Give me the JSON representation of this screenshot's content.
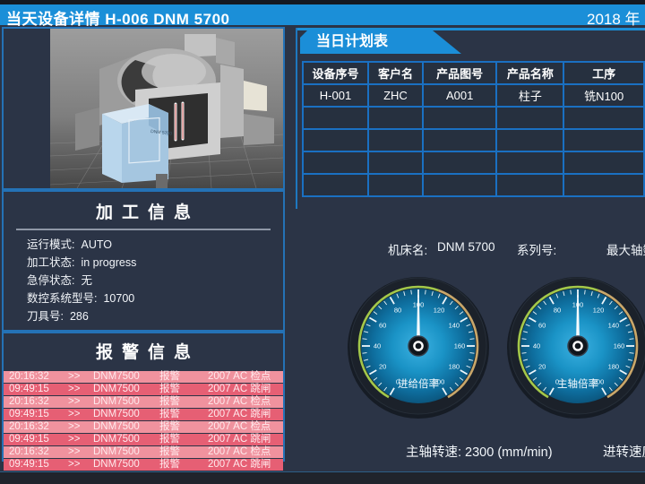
{
  "topbar": {
    "title": "当天设备详情  H-006   DNM 5700",
    "date": "2018 年"
  },
  "plan": {
    "tab_label": "当日计划表",
    "columns": [
      "设备序号",
      "客户名",
      "产品图号",
      "产品名称",
      "工序"
    ],
    "rows": [
      [
        "H-001",
        "ZHC",
        "A001",
        "柱子",
        "铣N100"
      ],
      [
        "",
        "",
        "",
        "",
        ""
      ],
      [
        "",
        "",
        "",
        "",
        ""
      ],
      [
        "",
        "",
        "",
        "",
        ""
      ],
      [
        "",
        "",
        "",
        "",
        ""
      ]
    ]
  },
  "machine_meta": {
    "name_label": "机床名:",
    "name_value": "DNM 5700",
    "serial_label": "系列号:",
    "max_axis_label": "最大轴数"
  },
  "machine_image": {
    "model_text": "DNM 5700"
  },
  "processing": {
    "title": "加工信息",
    "fields": [
      {
        "label": "运行模式:",
        "value": "AUTO"
      },
      {
        "label": "加工状态:",
        "value": "in progress"
      },
      {
        "label": "急停状态:",
        "value": "无"
      },
      {
        "label": "数控系统型号:",
        "value": "10700"
      },
      {
        "label": "刀具号:",
        "value": "286"
      }
    ]
  },
  "alarms": {
    "title": "报警信息",
    "rows": [
      {
        "time": "20:16:32",
        "sep": ">>",
        "device": "DNM7500",
        "type": "报警",
        "code": "2007  AC 检点",
        "tone": "light"
      },
      {
        "time": "09:49:15",
        "sep": ">>",
        "device": "DNM7500",
        "type": "报警",
        "code": "2007  AC 跳闸",
        "tone": "dark"
      },
      {
        "time": "20:16:32",
        "sep": ">>",
        "device": "DNM7500",
        "type": "报警",
        "code": "2007  AC 检点",
        "tone": "light"
      },
      {
        "time": "09:49:15",
        "sep": ">>",
        "device": "DNM7500",
        "type": "报警",
        "code": "2007  AC 跳闸",
        "tone": "dark"
      },
      {
        "time": "20:16:32",
        "sep": ">>",
        "device": "DNM7500",
        "type": "报警",
        "code": "2007  AC 检点",
        "tone": "light"
      },
      {
        "time": "09:49:15",
        "sep": ">>",
        "device": "DNM7500",
        "type": "报警",
        "code": "2007  AC 跳闸",
        "tone": "dark"
      },
      {
        "time": "20:16:32",
        "sep": ">>",
        "device": "DNM7500",
        "type": "报警",
        "code": "2007  AC 检点",
        "tone": "light"
      },
      {
        "time": "09:49:15",
        "sep": ">>",
        "device": "DNM7500",
        "type": "报警",
        "code": "2007  AC 跳闸",
        "tone": "dark"
      }
    ]
  },
  "gauges": [
    {
      "label": "进给倍率",
      "min": 0,
      "max": 200,
      "major_step": 20,
      "minor_step": 5,
      "value": 100
    },
    {
      "label": "主轴倍率",
      "min": 0,
      "max": 200,
      "major_step": 20,
      "minor_step": 5,
      "value": 100
    }
  ],
  "readouts": {
    "spindle_speed": "主轴转速: 2300 (mm/min)",
    "feed_speed": "进转速度"
  },
  "colors": {
    "accent_blue": "#1b8fd8",
    "panel_border": "#2472b6",
    "table_border": "#1a70c2",
    "alarm_light": "#f0929e",
    "alarm_dark": "#e65f74",
    "gauge_green_arc": "#a3c84a",
    "gauge_gold_arc": "#c9a76a"
  }
}
